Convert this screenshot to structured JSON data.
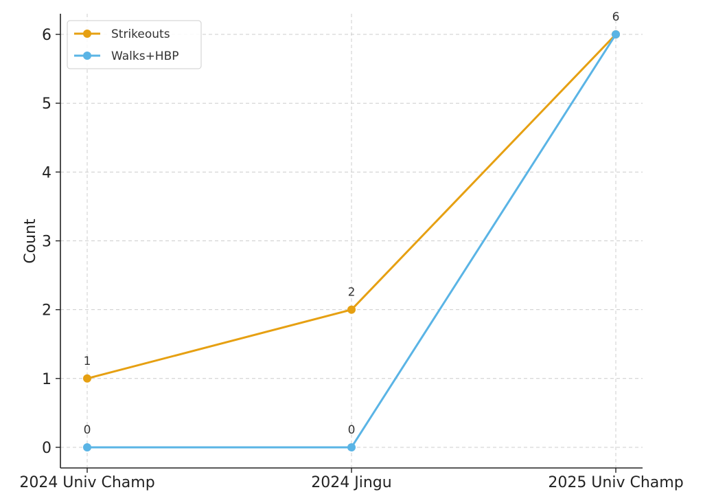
{
  "chart_data": {
    "type": "line",
    "title": "",
    "xlabel": "",
    "ylabel": "Count",
    "categories": [
      "2024 Univ Champ",
      "2024 Jingu",
      "2025 Univ Champ"
    ],
    "yticks": [
      0,
      1,
      2,
      3,
      4,
      5,
      6
    ],
    "ylim": [
      -0.3,
      6.3
    ],
    "grid": true,
    "legend_position": "top-left",
    "series": [
      {
        "name": "Strikeouts",
        "values": [
          1,
          2,
          6
        ],
        "color": "#E6A012",
        "data_labels": [
          "1",
          "2",
          "6"
        ]
      },
      {
        "name": "Walks+HBP",
        "values": [
          0,
          0,
          6
        ],
        "color": "#5AB4E5",
        "data_labels": [
          "0",
          "0",
          ""
        ]
      }
    ]
  }
}
